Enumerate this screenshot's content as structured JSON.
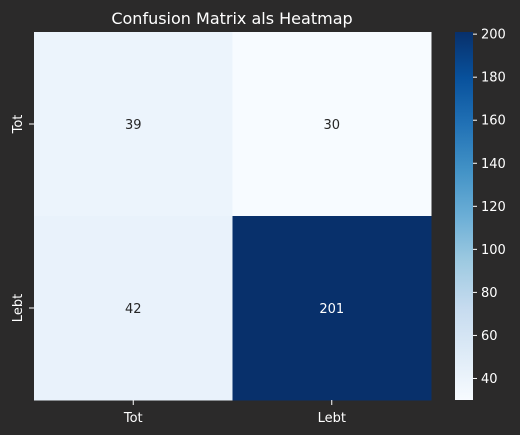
{
  "chart_data": {
    "type": "heatmap",
    "title": "Confusion Matrix als Heatmap",
    "xlabel": "",
    "ylabel": "",
    "x_categories": [
      "Tot",
      "Lebt"
    ],
    "y_categories": [
      "Tot",
      "Lebt"
    ],
    "values": [
      [
        39,
        30
      ],
      [
        42,
        201
      ]
    ],
    "colormap": "Blues",
    "color_range": [
      30,
      201
    ],
    "colorbar_ticks": [
      "40",
      "60",
      "80",
      "100",
      "120",
      "140",
      "160",
      "180",
      "200"
    ],
    "grid": false,
    "legend": "colorbar-right"
  },
  "colors": {
    "background": "#2b2a2a",
    "text": "#ffffff",
    "cell_text_dark": "#262626",
    "cell_text_light": "#ffffff"
  }
}
